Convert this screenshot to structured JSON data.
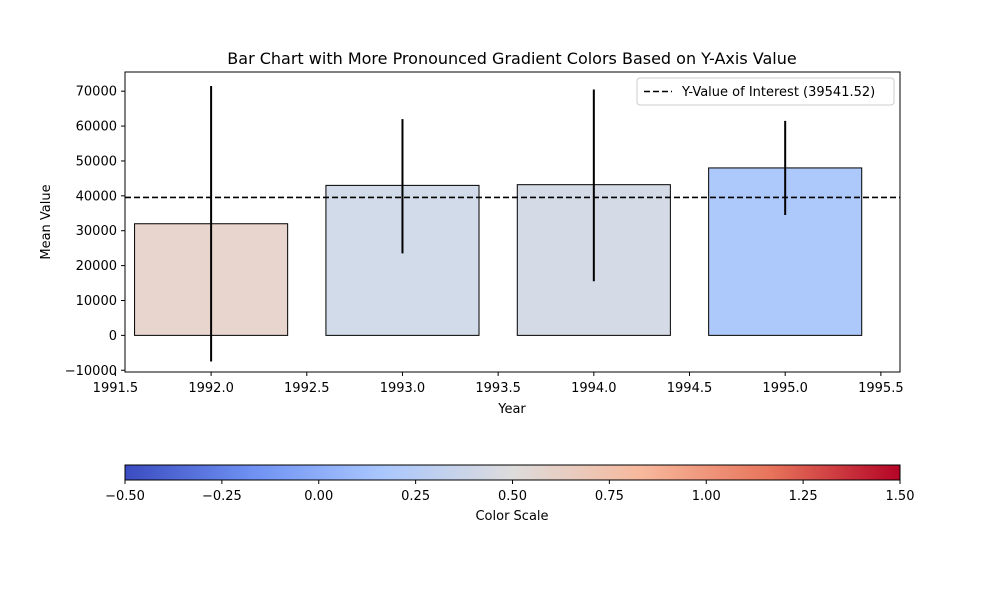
{
  "chart_data": {
    "type": "bar",
    "title": "Bar Chart with More Pronounced Gradient Colors Based on Y-Axis Value",
    "xlabel": "Year",
    "ylabel": "Mean Value",
    "x": [
      1992,
      1993,
      1994,
      1995
    ],
    "values": [
      32000,
      43000,
      43200,
      48000
    ],
    "error_low": [
      -7500,
      23500,
      15500,
      34500
    ],
    "error_high": [
      71500,
      62000,
      70500,
      61500
    ],
    "bar_colors": [
      "#e8d5ce",
      "#d1dbe9",
      "#d4dae6",
      "#adc8fb"
    ],
    "bar_width": 0.8,
    "xlim": [
      1991.55,
      1995.6
    ],
    "ylim": [
      -10500,
      75500
    ],
    "xticks": [
      1991.5,
      1992.0,
      1992.5,
      1993.0,
      1993.5,
      1994.0,
      1994.5,
      1995.0,
      1995.5
    ],
    "xtick_labels": [
      "1991.5",
      "1992.0",
      "1992.5",
      "1993.0",
      "1993.5",
      "1994.0",
      "1994.5",
      "1995.0",
      "1995.5"
    ],
    "yticks": [
      -10000,
      0,
      10000,
      20000,
      30000,
      40000,
      50000,
      60000,
      70000
    ],
    "ytick_labels": [
      "−10000",
      "0",
      "10000",
      "20000",
      "30000",
      "40000",
      "50000",
      "60000",
      "70000"
    ],
    "reference_line": {
      "value": 39541.52,
      "label": "Y-Value of Interest (39541.52)",
      "style": "dashed",
      "color": "#000000"
    },
    "legend": {
      "position": "top-right"
    },
    "grid": false,
    "colorbar": {
      "label": "Color Scale",
      "range": [
        -0.5,
        1.5
      ],
      "ticks": [
        -0.5,
        -0.25,
        0.0,
        0.25,
        0.5,
        0.75,
        1.0,
        1.25,
        1.5
      ],
      "tick_labels": [
        "−0.50",
        "−0.25",
        "0.00",
        "0.25",
        "0.50",
        "0.75",
        "1.00",
        "1.25",
        "1.50"
      ],
      "colormap": "coolwarm",
      "stops": [
        "#3b4cc0",
        "#6f92f3",
        "#aac7fd",
        "#dddcdc",
        "#f7b89c",
        "#e7745b",
        "#b40426"
      ]
    }
  }
}
